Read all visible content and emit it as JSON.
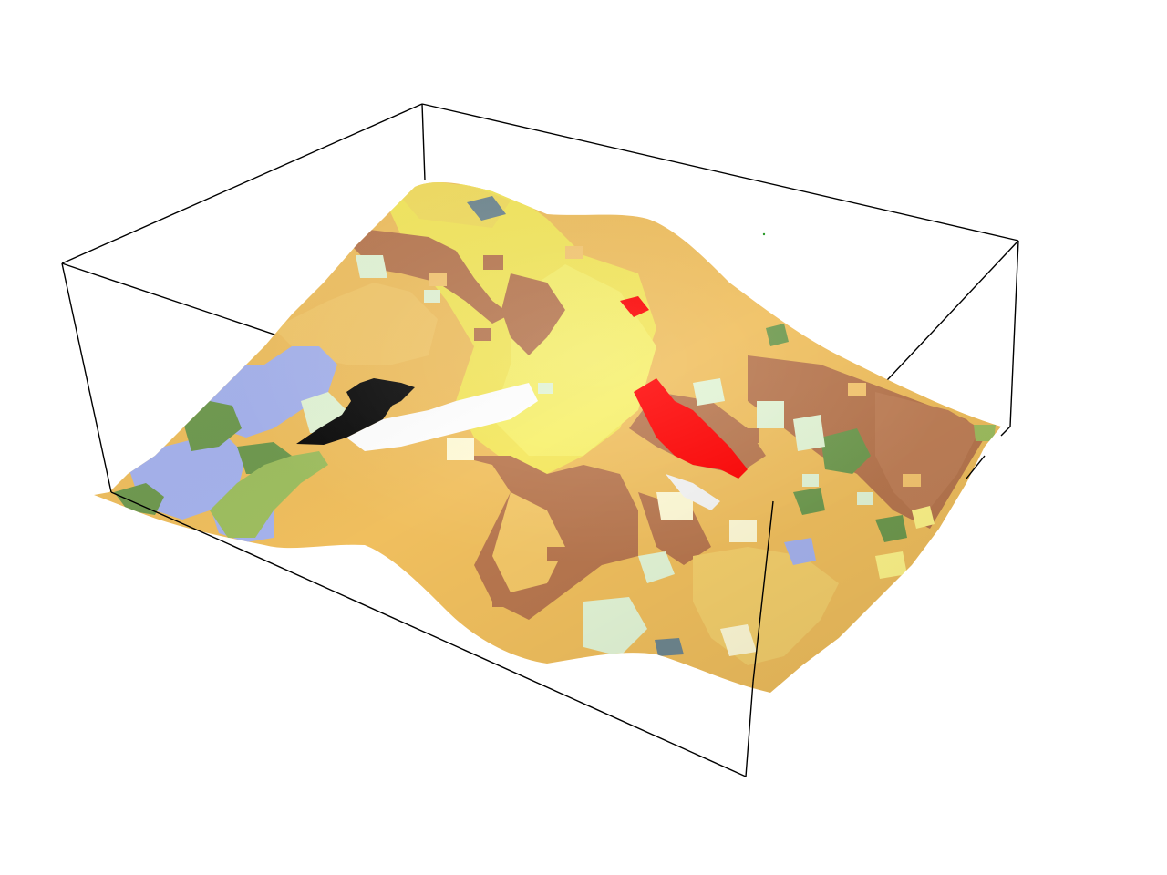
{
  "scene": {
    "type": "3d-terrain-surface",
    "bounding_box": "wireframe",
    "surface_texture": "land-cover grid",
    "colors": {
      "background": "#ffffff",
      "box_lines": "#000000",
      "land_cover": {
        "cropland_light": "#f4d36a",
        "cropland_orange": "#f0b65c",
        "bare_brown": "#b8774f",
        "grassland_yellow": "#f7f06a",
        "forest_green": "#6f9a4f",
        "shrub_lightgreen": "#9fbf60",
        "water_blue": "#a6b3ee",
        "wetland_pale": "#e3f5d6",
        "snow_white": "#ffffff",
        "urban_red": "#ff0000",
        "unclassified_black": "#0a0a0a",
        "rock_gray": "#6f8790"
      }
    }
  }
}
